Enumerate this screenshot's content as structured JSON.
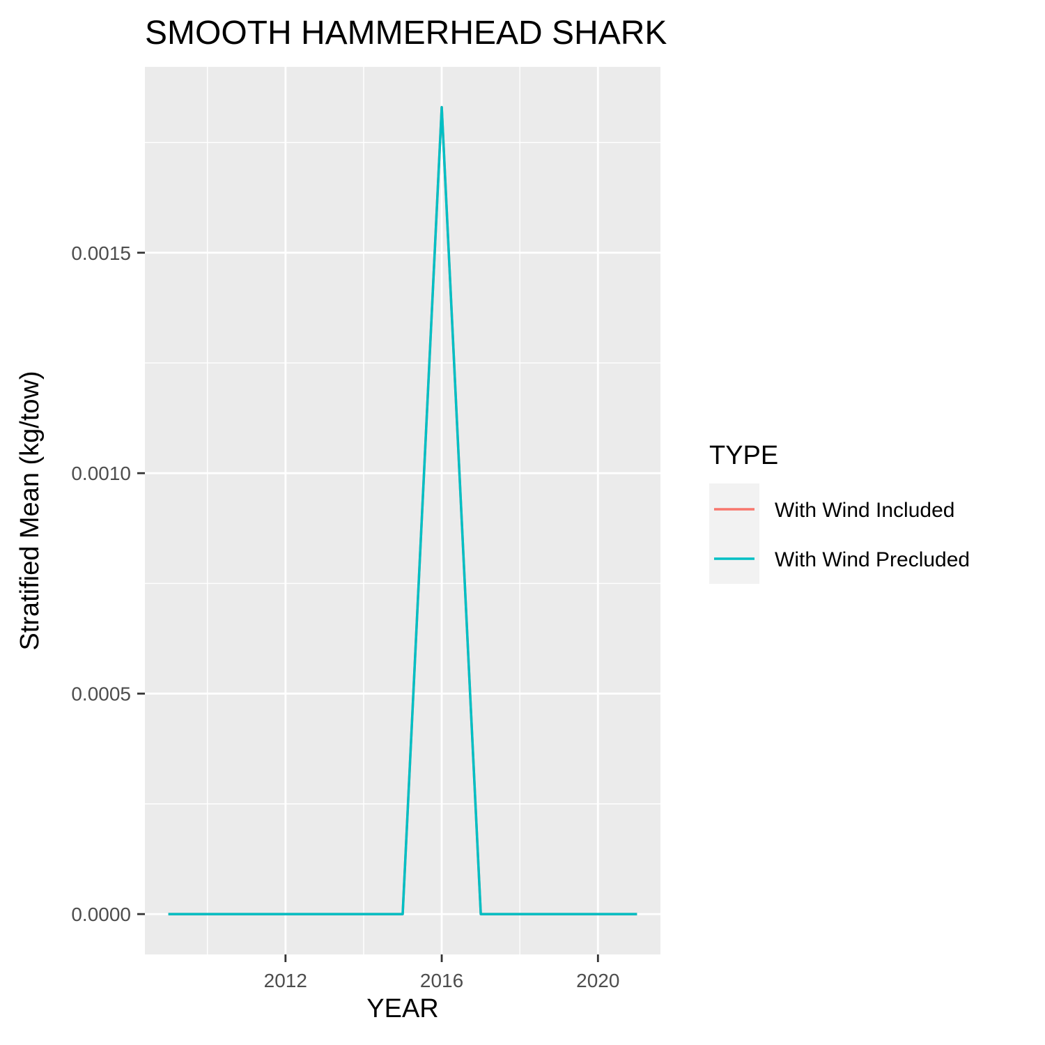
{
  "chart_data": {
    "type": "line",
    "title": "SMOOTH HAMMERHEAD SHARK",
    "xlabel": "YEAR",
    "ylabel": "Stratified Mean (kg/tow)",
    "x": [
      2009,
      2010,
      2011,
      2012,
      2013,
      2014,
      2015,
      2016,
      2017,
      2018,
      2019,
      2020,
      2021
    ],
    "series": [
      {
        "name": "With Wind Included",
        "color": "#F8766D",
        "values": [
          0,
          0,
          0,
          0,
          0,
          0,
          0,
          0.00183,
          0,
          0,
          0,
          0,
          0
        ]
      },
      {
        "name": "With Wind Precluded",
        "color": "#00BFC4",
        "values": [
          0,
          0,
          0,
          0,
          0,
          0,
          0,
          0.00183,
          0,
          0,
          0,
          0,
          0
        ]
      }
    ],
    "xlim": [
      2008.4,
      2021.6
    ],
    "ylim": [
      -9.15e-05,
      0.0019215
    ],
    "x_ticks": [
      2012,
      2016,
      2020
    ],
    "x_tick_labels": [
      "2012",
      "2016",
      "2020"
    ],
    "x_minor_ticks": [
      2010,
      2014,
      2018
    ],
    "y_ticks": [
      0,
      0.0005,
      0.001,
      0.0015
    ],
    "y_tick_labels": [
      "0.0000",
      "0.0005",
      "0.0010",
      "0.0015"
    ],
    "y_minor_ticks": [
      0.00025,
      0.00075,
      0.00125,
      0.00175
    ],
    "grid": true,
    "legend": {
      "title": "TYPE",
      "position": "right"
    },
    "panel_background": "#EBEBEB",
    "grid_color": "#FFFFFF"
  }
}
